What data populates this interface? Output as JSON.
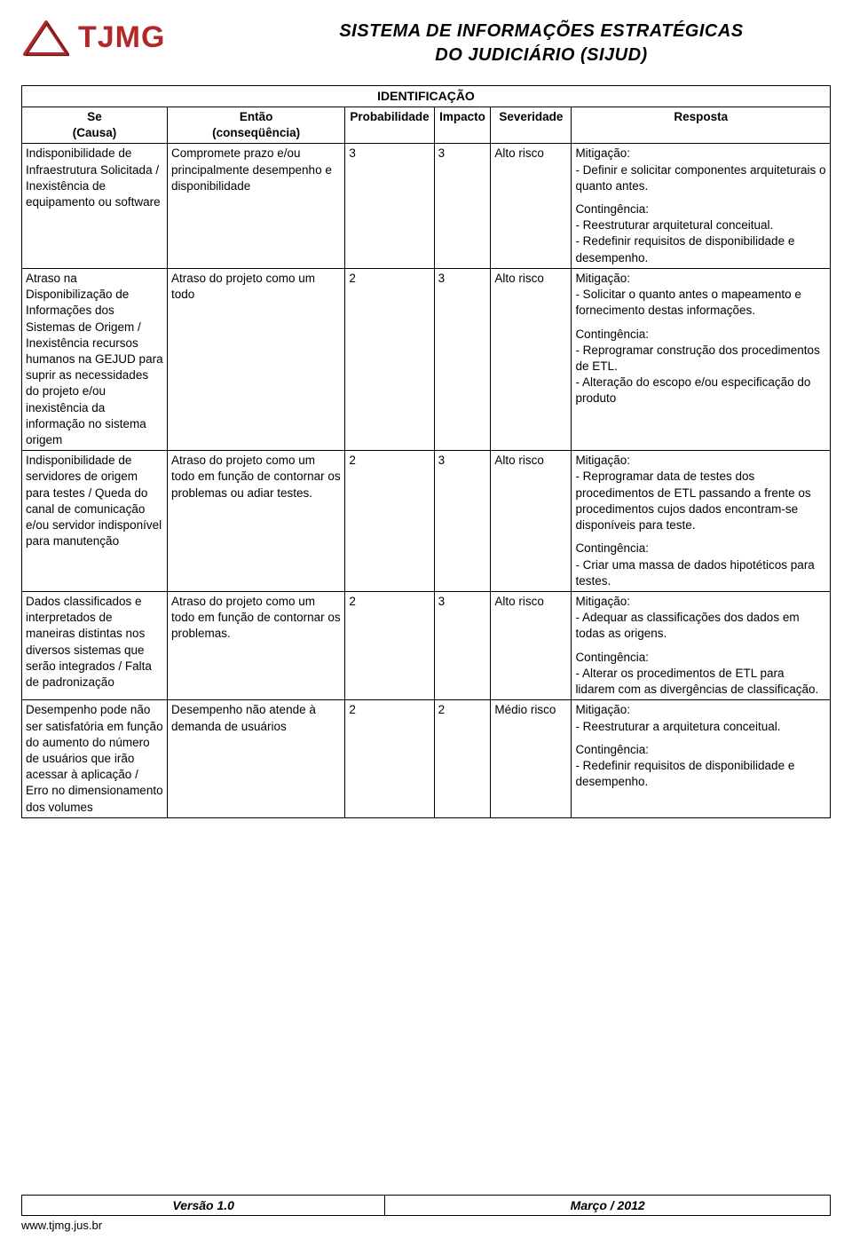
{
  "header": {
    "logo_text": "TJMG",
    "title_line1": "SISTEMA DE INFORMAÇÕES ESTRATÉGICAS",
    "title_line2": "DO JUDICIÁRIO (SIJUD)"
  },
  "table": {
    "super_header": "IDENTIFICAÇÃO",
    "columns": {
      "se_l1": "Se",
      "se_l2": "(Causa)",
      "entao_l1": "Então",
      "entao_l2": "(conseqüência)",
      "prob": "Probabilidade",
      "imp": "Impacto",
      "sev": "Severidade",
      "resp": "Resposta"
    },
    "rows": [
      {
        "se": "Indisponibilidade de Infraestrutura Solicitada / Inexistência de equipamento ou software",
        "entao": "Compromete prazo e/ou principalmente desempenho e disponibilidade",
        "prob": "3",
        "imp": "3",
        "sev": "Alto risco",
        "resp_mit_label": "Mitigação:",
        "resp_mit": "- Definir e solicitar componentes arquiteturais o quanto antes.",
        "resp_con_label": "Contingência:",
        "resp_con": "- Reestruturar arquitetural conceitual.\n- Redefinir requisitos de disponibilidade e desempenho."
      },
      {
        "se": "Atraso na Disponibilização de Informações dos Sistemas de Origem  / Inexistência recursos humanos na GEJUD para suprir as necessidades do projeto e/ou inexistência da informação no sistema origem",
        "entao": "Atraso do projeto como um todo",
        "prob": "2",
        "imp": "3",
        "sev": "Alto risco",
        "resp_mit_label": "Mitigação:",
        "resp_mit": "- Solicitar o quanto antes o mapeamento e fornecimento destas informações.",
        "resp_con_label": "Contingência:",
        "resp_con": "- Reprogramar construção dos procedimentos de ETL.\n- Alteração do escopo e/ou especificação do produto"
      },
      {
        "se": "Indisponibilidade de servidores de origem para testes  / Queda do canal de comunicação e/ou servidor indisponível para manutenção",
        "entao": "Atraso do projeto como um todo em função de contornar os problemas ou adiar testes.",
        "prob": "2",
        "imp": "3",
        "sev": "Alto risco",
        "resp_mit_label": "Mitigação:",
        "resp_mit": "- Reprogramar data de testes dos procedimentos de ETL passando a frente os procedimentos cujos dados encontram-se disponíveis para teste.",
        "resp_con_label": "Contingência:",
        "resp_con": "- Criar uma massa de dados hipotéticos para testes."
      },
      {
        "se": "Dados classificados e interpretados de maneiras distintas nos diversos sistemas que serão integrados / Falta de padronização",
        "entao": "Atraso do projeto como um todo em função de contornar os problemas.",
        "prob": "2",
        "imp": "3",
        "sev": "Alto risco",
        "resp_mit_label": "Mitigação:",
        "resp_mit": "- Adequar as classificações dos dados em todas as origens.",
        "resp_con_label": "Contingência:",
        "resp_con": "- Alterar os procedimentos de ETL para lidarem com as divergências de classificação."
      },
      {
        "se": "Desempenho pode não ser satisfatória em função do aumento do número de usuários que irão acessar à aplicação / Erro no dimensionamento dos volumes",
        "entao": "Desempenho não atende à demanda de usuários",
        "prob": "2",
        "imp": "2",
        "sev": "Médio risco",
        "resp_mit_label": "Mitigação:",
        "resp_mit": "- Reestruturar a arquitetura conceitual.",
        "resp_con_label": "Contingência:",
        "resp_con": "- Redefinir requisitos de disponibilidade e desempenho."
      }
    ]
  },
  "footer": {
    "version": "Versão 1.0",
    "date": "Março /  2012",
    "url": "www.tjmg.jus.br"
  }
}
